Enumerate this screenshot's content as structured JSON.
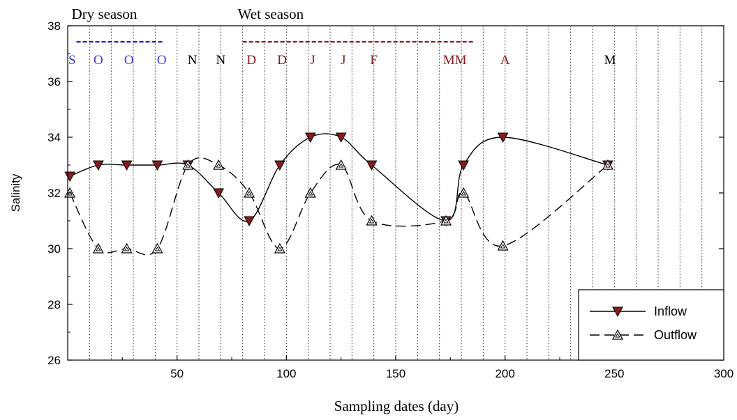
{
  "chart_data": {
    "type": "line",
    "xlabel": "Sampling dates (day)",
    "ylabel": "Salinity",
    "xlim": [
      0,
      300
    ],
    "ylim": [
      26,
      38
    ],
    "x_ticks": [
      50,
      100,
      150,
      200,
      250,
      300
    ],
    "y_ticks": [
      26,
      28,
      30,
      32,
      34,
      36,
      38
    ],
    "grid": "vertical dotted lines every 10 days",
    "legend_position": "bottom-right",
    "seasons": [
      {
        "label": "Dry season",
        "start": 4,
        "end": 44,
        "color": "#1a1adc"
      },
      {
        "label": "Wet season",
        "start": 80,
        "end": 186,
        "color": "#8b1a1a"
      }
    ],
    "month_labels": [
      {
        "text": "S",
        "x": 2,
        "color": "#3a3ae0"
      },
      {
        "text": "O",
        "x": 14,
        "color": "#3a3ae0"
      },
      {
        "text": "O",
        "x": 28,
        "color": "#3a3ae0"
      },
      {
        "text": "O",
        "x": 43,
        "color": "#3a3ae0"
      },
      {
        "text": "N",
        "x": 57,
        "color": "#000000"
      },
      {
        "text": "N",
        "x": 70,
        "color": "#000000"
      },
      {
        "text": "D",
        "x": 84,
        "color": "#8b1a1a"
      },
      {
        "text": "D",
        "x": 98,
        "color": "#8b1a1a"
      },
      {
        "text": "J",
        "x": 112,
        "color": "#8b1a1a"
      },
      {
        "text": "J",
        "x": 126,
        "color": "#8b1a1a"
      },
      {
        "text": "F",
        "x": 140,
        "color": "#8b1a1a"
      },
      {
        "text": "MM",
        "x": 177,
        "color": "#8b1a1a"
      },
      {
        "text": "A",
        "x": 200,
        "color": "#8b1a1a"
      },
      {
        "text": "M",
        "x": 248,
        "color": "#000000"
      }
    ],
    "series": [
      {
        "name": "Inflow",
        "marker": "filled-down-triangle",
        "line": "solid",
        "color": "#8b1a1a",
        "x": [
          1,
          14,
          27,
          41,
          55,
          69,
          83,
          97,
          111,
          125,
          139,
          173,
          181,
          199,
          247
        ],
        "y": [
          32.6,
          33.0,
          33.0,
          33.0,
          33.0,
          32.0,
          31.0,
          33.0,
          34.0,
          34.0,
          33.0,
          31.0,
          33.0,
          34.0,
          33.0
        ]
      },
      {
        "name": "Outflow",
        "marker": "open-up-triangle",
        "line": "dashed",
        "color": "#000000",
        "x": [
          1,
          14,
          27,
          41,
          55,
          69,
          83,
          97,
          111,
          125,
          139,
          173,
          181,
          199,
          247
        ],
        "y": [
          32.0,
          30.0,
          30.0,
          30.0,
          33.0,
          33.0,
          32.0,
          30.0,
          32.0,
          33.0,
          31.0,
          31.0,
          32.0,
          30.1,
          33.0
        ]
      }
    ]
  }
}
